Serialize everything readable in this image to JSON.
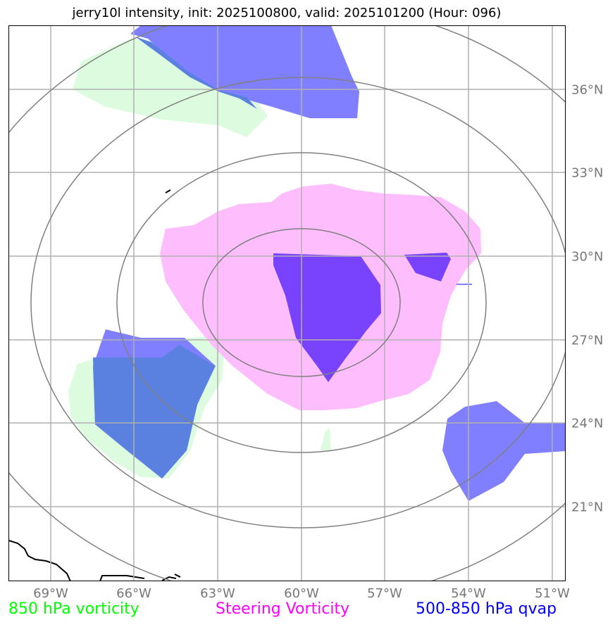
{
  "title": "jerry10l intensity, init: 2025100800, valid: 2025101200 (Hour: 096)",
  "lon_labels": [
    "69°W",
    "66°W",
    "63°W",
    "60°W",
    "57°W",
    "54°W",
    "51°W"
  ],
  "lat_labels": [
    "36°N",
    "33°N",
    "30°N",
    "27°N",
    "24°N",
    "21°N"
  ],
  "legend": {
    "vorticity_850": "850 hPa vorticity",
    "steering_vorticity": "Steering Vorticity",
    "qvap_500_850": "500-850 hPa qvap"
  },
  "colors": {
    "vorticity_850": "#00ff00",
    "steering_vorticity": "#ff00ff",
    "qvap_500_850": "#0000ff",
    "fill_green": "#ddfcdf",
    "fill_pink": "#febefd",
    "fill_blue": "#7f7fff",
    "fill_purple": "#7943fd",
    "fill_overlap": "#5a80e0"
  }
}
